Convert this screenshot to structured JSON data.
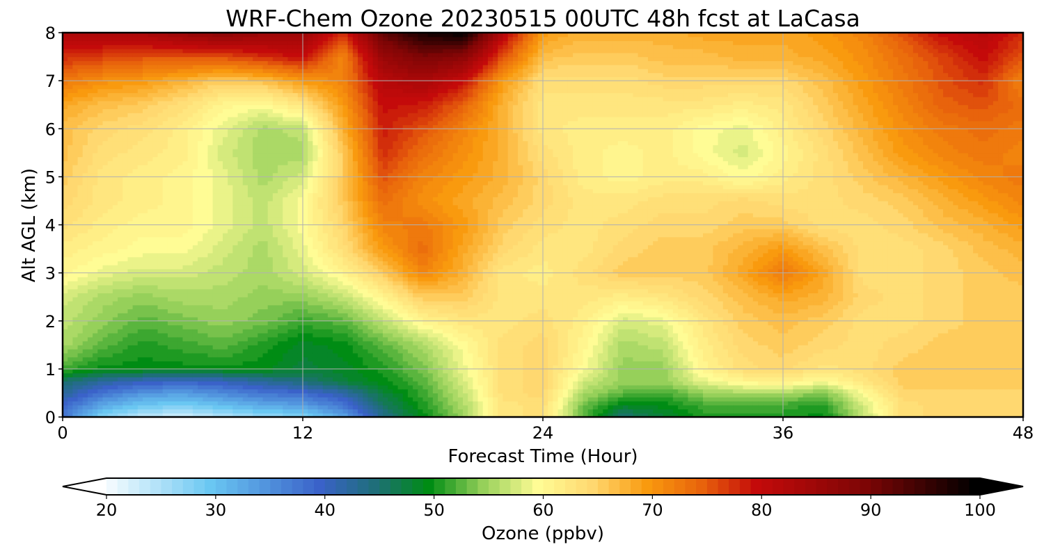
{
  "chart_data": {
    "type": "heatmap",
    "title": "WRF-Chem Ozone  20230515 00UTC 48h fcst at LaCasa",
    "xlabel": "Forecast Time (Hour)",
    "ylabel": "Alt AGL (km)",
    "xlim": [
      0,
      48
    ],
    "ylim": [
      0,
      8
    ],
    "x_ticks": [
      "0",
      "12",
      "24",
      "36",
      "48"
    ],
    "y_ticks": [
      "0",
      "1",
      "2",
      "3",
      "4",
      "5",
      "6",
      "7",
      "8"
    ],
    "grid": true,
    "colorbar": {
      "label": "Ozone  (ppbv)",
      "range": [
        20,
        100
      ],
      "extend": "both",
      "ticks": [
        "20",
        "30",
        "40",
        "50",
        "60",
        "70",
        "80",
        "90",
        "100"
      ],
      "stops": [
        {
          "v": 20,
          "c": "#ffffff"
        },
        {
          "v": 30,
          "c": "#6ac7f2"
        },
        {
          "v": 40,
          "c": "#3a62c9"
        },
        {
          "v": 45,
          "c": "#1f6e7a"
        },
        {
          "v": 50,
          "c": "#008c14"
        },
        {
          "v": 55,
          "c": "#96d05a"
        },
        {
          "v": 60,
          "c": "#fffc95"
        },
        {
          "v": 65,
          "c": "#ffd870"
        },
        {
          "v": 70,
          "c": "#f99a0e"
        },
        {
          "v": 75,
          "c": "#e8630c"
        },
        {
          "v": 80,
          "c": "#c40a0a"
        },
        {
          "v": 90,
          "c": "#7d0505"
        },
        {
          "v": 100,
          "c": "#000000"
        }
      ]
    },
    "x": [
      0,
      2,
      4,
      6,
      8,
      10,
      12,
      14,
      16,
      18,
      20,
      22,
      24,
      26,
      28,
      30,
      32,
      34,
      36,
      38,
      40,
      42,
      44,
      46,
      48
    ],
    "y": [
      0,
      0.25,
      0.5,
      0.75,
      1,
      1.5,
      2,
      2.5,
      3,
      3.5,
      4,
      4.5,
      5,
      5.5,
      6,
      6.5,
      7,
      7.5,
      8
    ],
    "values": [
      [
        38,
        28,
        24,
        23,
        25,
        27,
        28,
        33,
        44,
        50,
        55,
        63,
        64,
        53,
        45,
        48,
        51,
        51,
        51,
        50,
        57,
        64,
        65,
        65,
        65
      ],
      [
        40,
        33,
        30,
        29,
        31,
        33,
        34,
        38,
        46,
        51,
        56,
        63,
        64,
        54,
        49,
        50,
        52,
        52,
        52,
        51,
        58,
        64,
        65,
        65,
        65
      ],
      [
        43,
        38,
        35,
        34,
        36,
        38,
        39,
        42,
        48,
        52,
        57,
        64,
        65,
        56,
        53,
        52,
        55,
        56,
        56,
        54,
        60,
        65,
        65,
        65,
        65
      ],
      [
        46,
        43,
        41,
        40,
        41,
        43,
        45,
        48,
        50,
        53,
        58,
        64,
        65,
        58,
        55,
        55,
        59,
        61,
        62,
        60,
        63,
        66,
        66,
        66,
        66
      ],
      [
        52,
        50,
        50,
        50,
        50,
        50,
        48,
        49,
        51,
        54,
        59,
        64,
        65,
        60,
        55,
        55,
        61,
        64,
        65,
        63,
        64,
        66,
        66,
        66,
        66
      ],
      [
        56,
        53,
        51,
        52,
        53,
        51,
        49,
        50,
        53,
        56,
        60,
        64,
        65,
        61,
        56,
        57,
        62,
        65,
        66,
        65,
        64,
        65,
        66,
        66,
        66
      ],
      [
        57,
        55,
        53,
        54,
        55,
        54,
        52,
        53,
        57,
        61,
        63,
        63,
        64,
        62,
        58,
        59,
        63,
        66,
        67,
        66,
        64,
        64,
        65,
        66,
        66
      ],
      [
        58,
        56,
        55,
        56,
        56,
        55,
        55,
        57,
        61,
        66,
        66,
        63,
        63,
        63,
        62,
        63,
        65,
        67,
        69,
        68,
        65,
        64,
        65,
        66,
        66
      ],
      [
        61,
        59,
        58,
        58,
        57,
        56,
        58,
        61,
        66,
        72,
        68,
        63,
        62,
        64,
        66,
        66,
        66,
        69,
        73,
        69,
        64,
        64,
        65,
        66,
        67
      ],
      [
        62,
        61,
        60,
        60,
        58,
        56,
        59,
        64,
        70,
        74,
        69,
        65,
        63,
        63,
        65,
        66,
        66,
        68,
        70,
        67,
        64,
        64,
        65,
        67,
        68
      ],
      [
        64,
        62,
        61,
        61,
        59,
        57,
        60,
        65,
        72,
        73,
        70,
        66,
        64,
        63,
        64,
        65,
        65,
        66,
        66,
        64,
        64,
        65,
        67,
        68,
        70
      ],
      [
        65,
        63,
        62,
        61,
        59,
        57,
        60,
        66,
        74,
        71,
        69,
        67,
        65,
        63,
        63,
        64,
        64,
        65,
        64,
        64,
        65,
        66,
        68,
        70,
        72
      ],
      [
        66,
        63,
        62,
        61,
        59,
        56,
        58,
        66,
        76,
        72,
        70,
        68,
        65,
        62,
        61,
        62,
        62,
        60,
        62,
        64,
        66,
        68,
        70,
        72,
        73
      ],
      [
        67,
        64,
        63,
        62,
        58,
        56,
        56,
        66,
        78,
        74,
        71,
        68,
        64,
        62,
        61,
        62,
        60,
        58,
        61,
        64,
        67,
        70,
        72,
        73,
        72
      ],
      [
        67,
        65,
        64,
        62,
        59,
        56,
        57,
        68,
        79,
        76,
        72,
        68,
        63,
        62,
        62,
        62,
        60,
        59,
        62,
        65,
        68,
        71,
        73,
        74,
        73
      ],
      [
        69,
        67,
        66,
        64,
        61,
        60,
        63,
        70,
        80,
        79,
        75,
        68,
        63,
        63,
        63,
        63,
        63,
        62,
        63,
        66,
        69,
        72,
        75,
        76,
        74
      ],
      [
        73,
        71,
        70,
        68,
        66,
        67,
        70,
        72,
        82,
        84,
        80,
        70,
        64,
        64,
        64,
        65,
        65,
        65,
        65,
        67,
        70,
        73,
        76,
        78,
        72
      ],
      [
        78,
        77,
        76,
        76,
        76,
        78,
        80,
        72,
        86,
        90,
        88,
        76,
        67,
        66,
        66,
        67,
        67,
        68,
        68,
        69,
        71,
        74,
        77,
        80,
        76
      ],
      [
        84,
        83,
        84,
        86,
        88,
        86,
        86,
        78,
        92,
        98,
        100,
        82,
        70,
        68,
        68,
        68,
        69,
        69,
        69,
        70,
        72,
        76,
        80,
        82,
        78
      ]
    ]
  }
}
